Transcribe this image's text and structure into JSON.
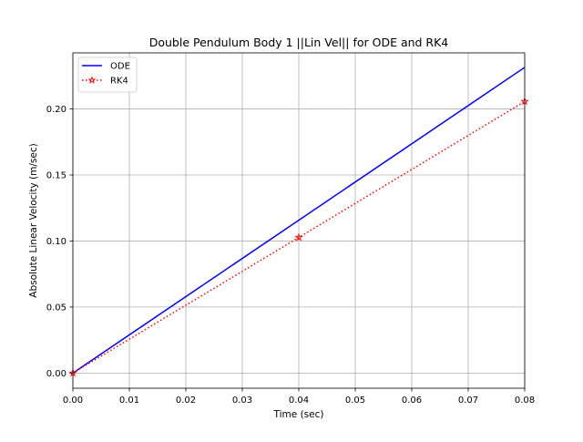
{
  "chart_data": {
    "type": "line",
    "title": "Double Pendulum Body 1 ||Lin Vel|| for ODE and RK4",
    "xlabel": "Time (sec)",
    "ylabel": "Absolute Linear Velocity (m/sec)",
    "xlim": [
      0.0,
      0.08
    ],
    "ylim": [
      -0.0115,
      0.2425
    ],
    "xticks": [
      0.0,
      0.01,
      0.02,
      0.03,
      0.04,
      0.05,
      0.06,
      0.07,
      0.08
    ],
    "xtick_labels": [
      "0.00",
      "0.01",
      "0.02",
      "0.03",
      "0.04",
      "0.05",
      "0.06",
      "0.07",
      "0.08"
    ],
    "yticks": [
      0.0,
      0.05,
      0.1,
      0.15,
      0.2
    ],
    "ytick_labels": [
      "0.00",
      "0.05",
      "0.10",
      "0.15",
      "0.20"
    ],
    "grid": true,
    "legend_position": "top-left",
    "series": [
      {
        "name": "ODE",
        "color": "#0000ff",
        "linestyle": "solid",
        "marker": "none",
        "x": [
          0.0,
          0.08
        ],
        "y": [
          0.0,
          0.2315
        ]
      },
      {
        "name": "RK4",
        "color": "#ff0000",
        "linestyle": "dotted",
        "marker": "star",
        "x": [
          0.0,
          0.04,
          0.08
        ],
        "y": [
          0.0,
          0.1027,
          0.2057
        ]
      }
    ]
  }
}
